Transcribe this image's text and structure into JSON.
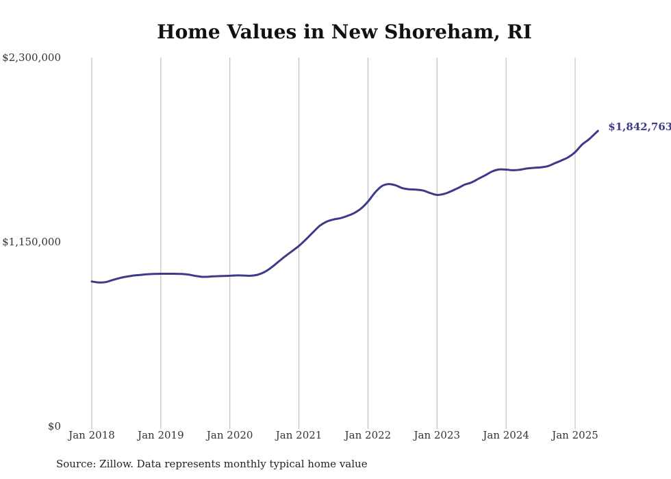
{
  "chart_data": {
    "type": "line",
    "title": "Home Values in New Shoreham, RI",
    "xlabel": "",
    "ylabel": "",
    "ylim": [
      0,
      2300000
    ],
    "yticks": [
      {
        "value": 0,
        "label": "$0"
      },
      {
        "value": 1150000,
        "label": "$1,150,000"
      },
      {
        "value": 2300000,
        "label": "$2,300,000"
      }
    ],
    "xticks": [
      {
        "value": 2018,
        "label": "Jan 2018"
      },
      {
        "value": 2019,
        "label": "Jan 2019"
      },
      {
        "value": 2020,
        "label": "Jan 2020"
      },
      {
        "value": 2021,
        "label": "Jan 2021"
      },
      {
        "value": 2022,
        "label": "Jan 2022"
      },
      {
        "value": 2023,
        "label": "Jan 2023"
      },
      {
        "value": 2024,
        "label": "Jan 2024"
      },
      {
        "value": 2025,
        "label": "Jan 2025"
      }
    ],
    "xlim": [
      2018,
      2025.33
    ],
    "grid": "vertical",
    "line_color": "#3d3a8c",
    "end_label": "$1,842,763",
    "series": [
      {
        "x": [
          2018.0,
          2018.1,
          2018.2,
          2018.3,
          2018.4,
          2018.5,
          2018.6,
          2018.7,
          2018.8,
          2018.9,
          2019.0,
          2019.1,
          2019.2,
          2019.3,
          2019.4,
          2019.5,
          2019.6,
          2019.7,
          2019.75,
          2019.8,
          2019.9,
          2020.0,
          2020.1,
          2020.2,
          2020.3,
          2020.4,
          2020.5,
          2020.6,
          2020.7,
          2020.8,
          2020.9,
          2021.0,
          2021.1,
          2021.2,
          2021.3,
          2021.4,
          2021.5,
          2021.6,
          2021.7,
          2021.8,
          2021.9,
          2022.0,
          2022.1,
          2022.2,
          2022.3,
          2022.4,
          2022.5,
          2022.6,
          2022.7,
          2022.8,
          2022.9,
          2023.0,
          2023.08,
          2023.15,
          2023.3,
          2023.4,
          2023.5,
          2023.6,
          2023.7,
          2023.8,
          2023.9,
          2024.0,
          2024.1,
          2024.2,
          2024.3,
          2024.4,
          2024.5,
          2024.6,
          2024.7,
          2024.8,
          2024.9,
          2025.0,
          2025.1,
          2025.2,
          2025.33
        ],
        "y": [
          903000,
          897000,
          899000,
          912000,
          924000,
          933000,
          940000,
          944000,
          948000,
          950000,
          951000,
          951000,
          951000,
          950000,
          946000,
          938000,
          932000,
          933000,
          935000,
          936000,
          937000,
          939000,
          941000,
          940000,
          939000,
          945000,
          962000,
          990000,
          1025000,
          1060000,
          1092000,
          1125000,
          1165000,
          1208000,
          1250000,
          1276000,
          1290000,
          1298000,
          1312000,
          1330000,
          1358000,
          1402000,
          1457000,
          1498000,
          1511000,
          1503000,
          1485000,
          1478000,
          1476000,
          1470000,
          1455000,
          1443000,
          1447000,
          1456000,
          1485000,
          1507000,
          1521000,
          1544000,
          1566000,
          1590000,
          1602000,
          1601000,
          1597000,
          1600000,
          1608000,
          1612000,
          1615000,
          1622000,
          1640000,
          1658000,
          1678000,
          1710000,
          1757000,
          1790000,
          1842763
        ]
      }
    ]
  },
  "source_note": "Source: Zillow. Data represents monthly typical home value"
}
